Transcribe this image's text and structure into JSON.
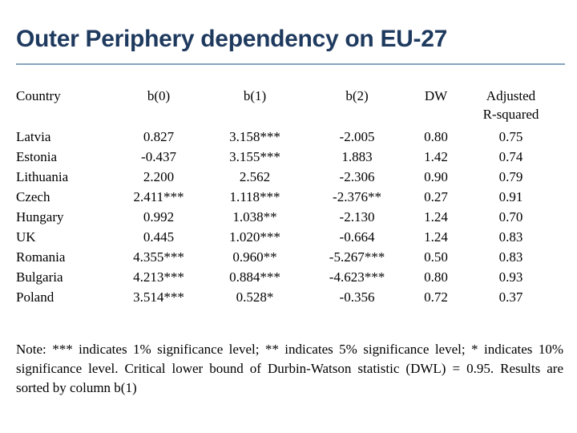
{
  "slide": {
    "title": "Outer Periphery dependency on EU-27",
    "accent_color": "#1f3a5f",
    "rule_color": "#8aa4c0"
  },
  "table": {
    "headers": {
      "country": "Country",
      "b0": "b(0)",
      "b1": "b(1)",
      "b2": "b(2)",
      "dw": "DW",
      "adj_line1": "Adjusted",
      "adj_line2": "R-squared"
    },
    "rows": [
      {
        "country": "Latvia",
        "b0": "0.827",
        "b1": "3.158***",
        "b2": "-2.005",
        "dw": "0.80",
        "adj": "0.75"
      },
      {
        "country": "Estonia",
        "b0": "-0.437",
        "b1": "3.155***",
        "b2": "1.883",
        "dw": "1.42",
        "adj": "0.74"
      },
      {
        "country": "Lithuania",
        "b0": "2.200",
        "b1": "2.562",
        "b2": "-2.306",
        "dw": "0.90",
        "adj": "0.79"
      },
      {
        "country": "Czech",
        "b0": "2.411***",
        "b1": "1.118***",
        "b2": "-2.376**",
        "dw": "0.27",
        "adj": "0.91"
      },
      {
        "country": "Hungary",
        "b0": "0.992",
        "b1": "1.038**",
        "b2": "-2.130",
        "dw": "1.24",
        "adj": "0.70"
      },
      {
        "country": "UK",
        "b0": "0.445",
        "b1": "1.020***",
        "b2": "-0.664",
        "dw": "1.24",
        "adj": "0.83"
      },
      {
        "country": "Romania",
        "b0": "4.355***",
        "b1": "0.960**",
        "b2": "-5.267***",
        "dw": "0.50",
        "adj": "0.83"
      },
      {
        "country": "Bulgaria",
        "b0": "4.213***",
        "b1": "0.884***",
        "b2": "-4.623***",
        "dw": "0.80",
        "adj": "0.93"
      },
      {
        "country": "Poland",
        "b0": "3.514***",
        "b1": "0.528*",
        "b2": "-0.356",
        "dw": "0.72",
        "adj": "0.37"
      }
    ]
  },
  "note": "Note: *** indicates 1% significance level; ** indicates 5% significance level; * indicates 10% significance level. Critical lower bound of Durbin-Watson statistic (DWL) = 0.95. Results are sorted by column b(1)"
}
